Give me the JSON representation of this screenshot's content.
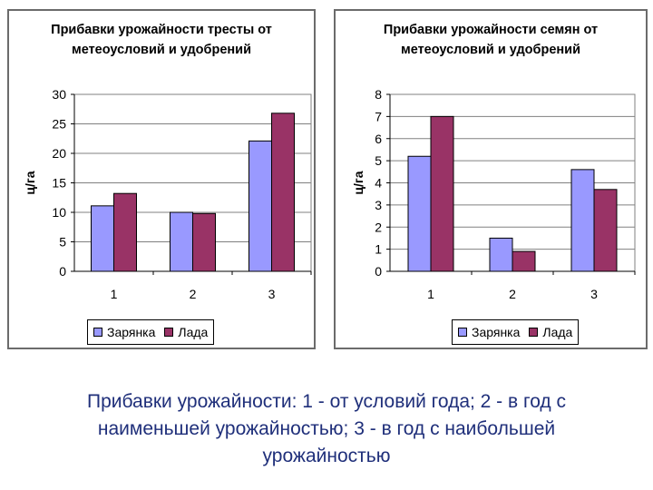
{
  "colors": {
    "zaryanka": "#9999ff",
    "lada": "#993366",
    "caption": "#1f2f7a"
  },
  "caption": "Прибавки урожайности: 1 - от условий года; 2 - в год с\nнаименьшей урожайностью; 3 - в год с наибольшей\nурожайностью",
  "chart_data": [
    {
      "type": "bar",
      "title": "Прибавки урожайности тресты от\nметеоусловий и удобрений",
      "xlabel": "",
      "ylabel": "ц/га",
      "categories": [
        "1",
        "2",
        "3"
      ],
      "ylim": [
        0,
        30
      ],
      "yticks": [
        "0",
        "5",
        "10",
        "15",
        "20",
        "25",
        "30"
      ],
      "grid": true,
      "legend": "bottom",
      "series": [
        {
          "name": "Зарянка",
          "values": [
            11.1,
            10.0,
            22.1
          ]
        },
        {
          "name": "Лада",
          "values": [
            13.2,
            9.8,
            26.8
          ]
        }
      ]
    },
    {
      "type": "bar",
      "title": "Прибавки урожайности семян от\nметеоусловий и удобрений",
      "xlabel": "",
      "ylabel": "ц/га",
      "categories": [
        "1",
        "2",
        "3"
      ],
      "ylim": [
        0,
        8
      ],
      "yticks": [
        "0",
        "1",
        "2",
        "3",
        "4",
        "5",
        "6",
        "7",
        "8"
      ],
      "grid": true,
      "legend": "bottom",
      "series": [
        {
          "name": "Зарянка",
          "values": [
            5.2,
            1.5,
            4.6
          ]
        },
        {
          "name": "Лада",
          "values": [
            7.0,
            0.9,
            3.7
          ]
        }
      ]
    }
  ]
}
